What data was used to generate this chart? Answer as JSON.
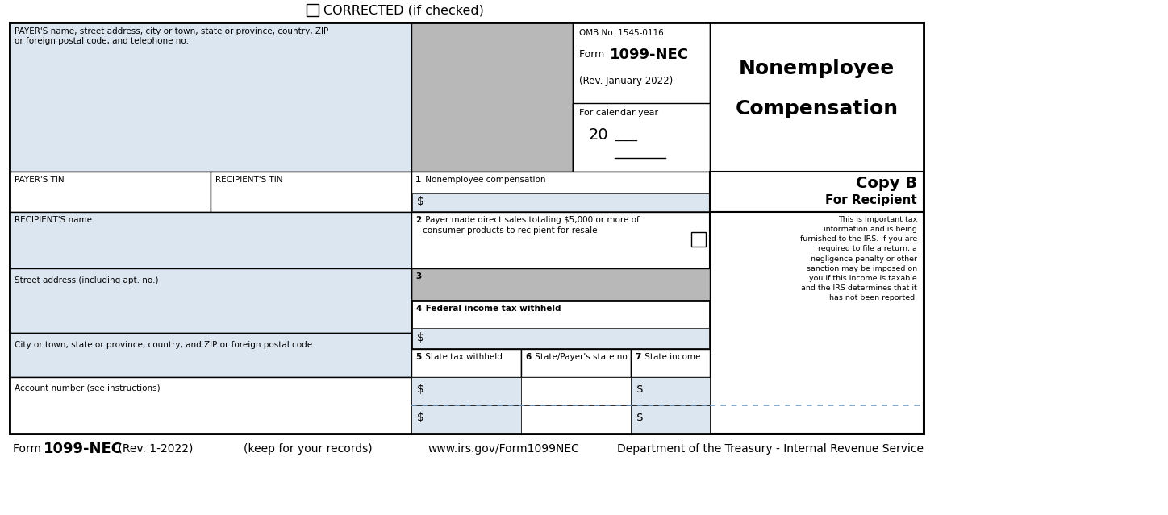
{
  "fig_width": 14.48,
  "fig_height": 6.39,
  "dpi": 100,
  "bg_color": "#ffffff",
  "light_blue": "#dce6f1",
  "light_gray": "#b8b8b8",
  "border_color": "#000000",
  "corrected_text": "CORRECTED (if checked)",
  "omb_text": "OMB No. 1545-0116",
  "rev_text": "(Rev. January 2022)",
  "cal_year_text": "For calendar year",
  "year_20": "20",
  "title_line1": "Nonemployee",
  "title_line2": "Compensation",
  "copy_b": "Copy B",
  "for_recipient": "For Recipient",
  "disclaimer": "This is important tax\ninformation and is being\nfurnished to the IRS. If you are\nrequired to file a return, a\nnegligence penalty or other\nsanction may be imposed on\nyou if this income is taxable\nand the IRS determines that it\nhas not been reported.",
  "footer_form": "Form ",
  "footer_form_bold": "1099-NEC",
  "footer_rev": " (Rev. 1-2022)",
  "footer_keep": "(keep for your records)",
  "footer_url": "www.irs.gov/Form1099NEC",
  "footer_dept": "Department of the Treasury - Internal Revenue Service",
  "payer_label": "PAYER'S name, street address, city or town, state or province, country, ZIP\nor foreign postal code, and telephone no.",
  "payer_tin": "PAYER'S TIN",
  "recipient_tin": "RECIPIENT'S TIN",
  "recipient_name": "RECIPIENT'S name",
  "street_addr": "Street address (including apt. no.)",
  "city_label": "City or town, state or province, country, and ZIP or foreign postal code",
  "acct_number": "Account number (see instructions)",
  "box1_num": "1",
  "box1_txt": " Nonemployee compensation",
  "box2_num": "2",
  "box2_txt": " Payer made direct sales totaling $5,000 or more of\nconsumer products to recipient for resale",
  "box3_num": "3",
  "box4_num": "4",
  "box4_txt": " Federal income tax withheld",
  "box5_num": "5",
  "box5_txt": " State tax withheld",
  "box6_num": "6",
  "box6_txt": " State/Payer's state no.",
  "box7_num": "7",
  "box7_txt": " State income",
  "dollar": "$",
  "form_bold": "1099-NEC",
  "form_prefix": "Form "
}
